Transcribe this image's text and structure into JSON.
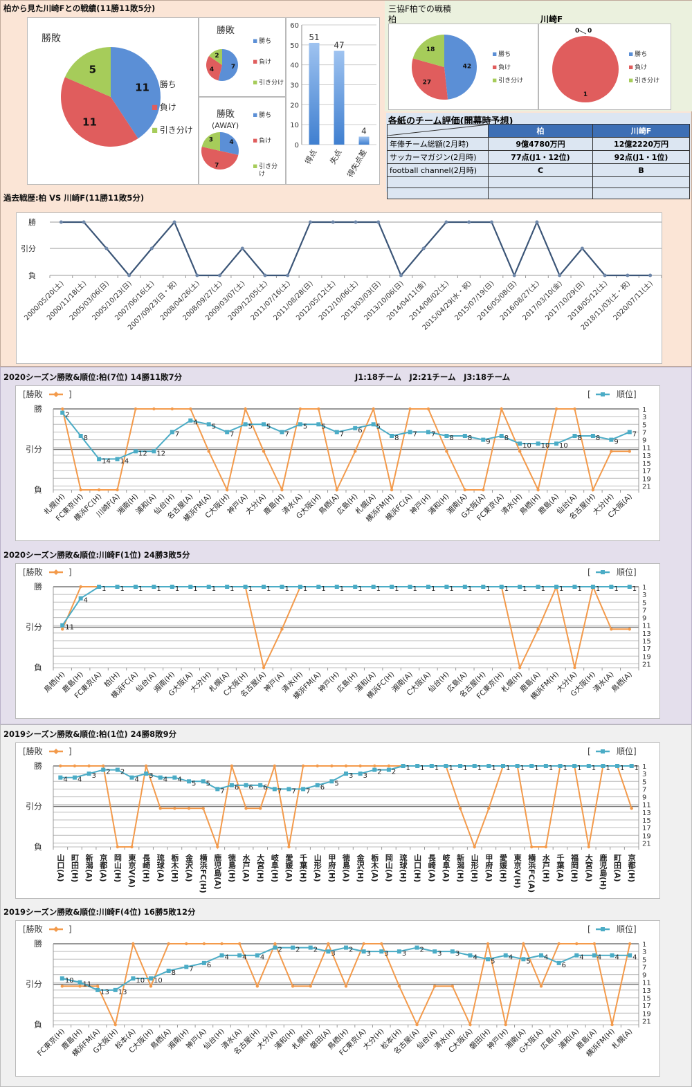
{
  "top_left": {
    "title": "柏から見た川崎Fとの戦績(11勝11敗5分)",
    "legend": [
      "勝ち",
      "負け",
      "引き分け"
    ],
    "colors": {
      "win": "#5b8fd6",
      "loss": "#e05d5d",
      "draw": "#a6cc5a"
    },
    "pie_all": {
      "title": "勝敗",
      "values": [
        11,
        11,
        5
      ]
    },
    "pie_home": {
      "title": "勝敗",
      "values": [
        7,
        4,
        2
      ]
    },
    "pie_away": {
      "title": "勝敗",
      "subtitle": "(AWAY)",
      "values": [
        4,
        7,
        3
      ],
      "legend_draw_line1": "引き分",
      "legend_draw_line2": "け"
    }
  },
  "top_right": {
    "title": "三協F柏での戦積",
    "pie_kashiwa": {
      "title": "柏",
      "values": [
        42,
        27,
        18
      ]
    },
    "pie_kawasaki": {
      "title": "川崎F",
      "values": [
        0,
        1,
        0
      ]
    }
  },
  "eval_table": {
    "title": "各紙のチーム評価(開幕時予想)",
    "headers": [
      "",
      "柏",
      "川崎F"
    ],
    "rows": [
      [
        "年俸チーム総額(2月時)",
        "9億4780万円",
        "12億2220万円"
      ],
      [
        "サッカーマガジン(2月時)",
        "77点(J1・12位)",
        "92点(J1・1位)"
      ],
      [
        "football channel(2月時)",
        "C",
        "B"
      ],
      [
        "",
        "",
        ""
      ],
      [
        "",
        "",
        ""
      ]
    ]
  },
  "chart_data": [
    {
      "id": "goals",
      "type": "bar",
      "categories": [
        "得点",
        "失点",
        "得失点差"
      ],
      "values": [
        51,
        47,
        4
      ],
      "ylim": [
        0,
        60
      ],
      "yticks": [
        0,
        10,
        20,
        30,
        40,
        50,
        60
      ],
      "color": "#4a86d6"
    },
    {
      "id": "history",
      "type": "line",
      "title": "過去戦歴:柏 VS 川崎F(11勝11敗5分)",
      "y_labels": [
        "勝",
        "引分",
        "負"
      ],
      "x": [
        "2000/05/20(土)",
        "2000/11/18(土)",
        "2005/03/06(日)",
        "2005/10/23(日)",
        "2007/06/16(土)",
        "2007/09/23(日・祝)",
        "2008/04/26(土)",
        "2008/09/27(土)",
        "2009/03/07(土)",
        "2009/12/05(土)",
        "2011/07/16(土)",
        "2011/08/28(日)",
        "2012/05/12(土)",
        "2012/10/06(土)",
        "2013/03/03(日)",
        "2013/10/06(日)",
        "2014/04/11(金)",
        "2014/08/02(土)",
        "2015/04/29(水・祝)",
        "2015/07/19(日)",
        "2016/05/08(日)",
        "2016/08/27(土)",
        "2017/03/10(金)",
        "2017/10/29(日)",
        "2018/05/12(土)",
        "2018/11/03(土・祝)",
        "2020/07/11(土)"
      ],
      "results": [
        "W",
        "W",
        "D",
        "L",
        "D",
        "W",
        "L",
        "L",
        "D",
        "L",
        "L",
        "W",
        "W",
        "W",
        "W",
        "L",
        "D",
        "W",
        "W",
        "W",
        "L",
        "W",
        "L",
        "D",
        "L",
        "L",
        "L"
      ],
      "color": "#3b5577"
    },
    {
      "id": "kashiwa2020",
      "type": "line",
      "title": "2020シーズン勝敗&順位:柏(7位) 14勝11敗7分",
      "note": "J1:18チーム　J2:21チーム　J3:18チーム",
      "legend_result": "[勝敗",
      "legend_rank": "順位]",
      "y_labels": [
        "勝",
        "引分",
        "負"
      ],
      "rank_ticks": [
        1,
        3,
        5,
        7,
        9,
        11,
        13,
        15,
        17,
        19,
        21
      ],
      "x": [
        "札幌(H)",
        "FC東京(H)",
        "横浜FC(H)",
        "川崎F(A)",
        "湘南(H)",
        "浦和(A)",
        "仙台(H)",
        "名古屋(A)",
        "横浜FM(A)",
        "C大阪(H)",
        "神戸(A)",
        "大分(A)",
        "鹿島(H)",
        "清水(A)",
        "G大阪(H)",
        "鳥栖(A)",
        "広島(H)",
        "札幌(A)",
        "横浜FM(H)",
        "横浜FC(A)",
        "神戸(H)",
        "浦和(H)",
        "湘南(A)",
        "G大阪(A)",
        "FC東京(A)",
        "清水(H)",
        "鳥栖(H)",
        "鹿島(A)",
        "仙台(A)",
        "名古屋(H)",
        "大分(H)",
        "C大阪(A)"
      ],
      "results": [
        "W",
        "L",
        "L",
        "L",
        "W",
        "W",
        "W",
        "W",
        "D",
        "L",
        "W",
        "D",
        "L",
        "W",
        "W",
        "L",
        "D",
        "W",
        "L",
        "W",
        "W",
        "D",
        "L",
        "L",
        "W",
        "D",
        "L",
        "W",
        "W",
        "L",
        "D",
        "D"
      ],
      "rank": [
        2,
        8,
        14,
        14,
        12,
        12,
        7,
        4,
        5,
        7,
        5,
        5,
        7,
        5,
        5,
        7,
        6,
        5,
        8,
        7,
        7,
        8,
        8,
        9,
        8,
        10,
        10,
        10,
        8,
        8,
        9,
        7
      ],
      "vertical_labels": false
    },
    {
      "id": "kawasaki2020",
      "type": "line",
      "title": "2020シーズン勝敗&順位:川崎F(1位) 24勝3敗5分",
      "legend_result": "[勝敗",
      "legend_rank": "順位]",
      "y_labels": [
        "勝",
        "引分",
        "負"
      ],
      "rank_ticks": [
        1,
        3,
        5,
        7,
        9,
        11,
        13,
        15,
        17,
        19,
        21
      ],
      "x": [
        "鳥栖(H)",
        "鹿島(H)",
        "FC東京(A)",
        "柏(H)",
        "横浜FC(A)",
        "仙台(A)",
        "湘南(H)",
        "G大阪(A)",
        "大分(H)",
        "札幌(A)",
        "C大阪(H)",
        "名古屋(A)",
        "神戸(A)",
        "清水(H)",
        "横浜FM(A)",
        "神戸(H)",
        "広島(H)",
        "浦和(A)",
        "横浜FC(H)",
        "湘南(A)",
        "C大阪(A)",
        "仙台(H)",
        "広島(A)",
        "名古屋(H)",
        "FC東京(H)",
        "札幌(H)",
        "鹿島(A)",
        "横浜FM(H)",
        "大分(A)",
        "G大阪(H)",
        "清水(A)",
        "鳥栖(A)"
      ],
      "results": [
        "D",
        "W",
        "W",
        "W",
        "W",
        "W",
        "W",
        "W",
        "W",
        "W",
        "W",
        "L",
        "D",
        "W",
        "W",
        "W",
        "W",
        "W",
        "W",
        "W",
        "W",
        "W",
        "W",
        "W",
        "W",
        "L",
        "D",
        "W",
        "L",
        "W",
        "D",
        "D"
      ],
      "rank": [
        11,
        4,
        1,
        1,
        1,
        1,
        1,
        1,
        1,
        1,
        1,
        1,
        1,
        1,
        1,
        1,
        1,
        1,
        1,
        1,
        1,
        1,
        1,
        1,
        1,
        1,
        1,
        1,
        1,
        1,
        1,
        1
      ],
      "vertical_labels": false
    },
    {
      "id": "kashiwa2019",
      "type": "line",
      "title": "2019シーズン勝敗&順位:柏(1位) 24勝8敗9分",
      "legend_result": "[勝敗",
      "legend_rank": "順位]",
      "y_labels": [
        "勝",
        "引分",
        "負"
      ],
      "rank_ticks": [
        1,
        3,
        5,
        7,
        9,
        11,
        13,
        15,
        17,
        19,
        21
      ],
      "x": [
        "山口(A)",
        "町田(H)",
        "新潟(A)",
        "京都(A)",
        "岡山(H)",
        "東京V(A)",
        "長崎(H)",
        "琉球(A)",
        "栃木(H)",
        "金沢(A)",
        "横浜FC(H)",
        "鹿児島(A)",
        "徳島(H)",
        "水戸(A)",
        "大宮(H)",
        "岐阜(H)",
        "愛媛(A)",
        "千葉(H)",
        "山形(A)",
        "甲府(H)",
        "徳島(A)",
        "金沢(H)",
        "栃木(A)",
        "岡山(A)",
        "琉球(H)",
        "山口(H)",
        "長崎(A)",
        "岐阜(A)",
        "新潟(H)",
        "山形(H)",
        "甲府(A)",
        "愛媛(H)",
        "東京V(H)",
        "横浜FC(A)",
        "水戸(H)",
        "千葉(A)",
        "福岡(H)",
        "大宮(A)",
        "鹿児島(H)",
        "町田(A)",
        "京都(H)"
      ],
      "results": [
        "W",
        "W",
        "W",
        "W",
        "L",
        "L",
        "W",
        "D",
        "D",
        "D",
        "D",
        "L",
        "W",
        "D",
        "D",
        "W",
        "L",
        "W",
        "W",
        "W",
        "W",
        "W",
        "W",
        "W",
        "W",
        "W",
        "W",
        "W",
        "D",
        "L",
        "D",
        "W",
        "W",
        "L",
        "L",
        "W",
        "W",
        "L",
        "W",
        "W",
        "D"
      ],
      "rank": [
        4,
        4,
        3,
        2,
        2,
        4,
        3,
        4,
        4,
        5,
        5,
        7,
        6,
        6,
        6,
        7,
        7,
        7,
        6,
        5,
        3,
        3,
        2,
        2,
        1,
        1,
        1,
        1,
        1,
        1,
        1,
        1,
        1,
        1,
        1,
        1,
        1,
        1,
        1,
        1,
        1
      ],
      "vertical_labels": true
    },
    {
      "id": "kawasaki2019",
      "type": "line",
      "title": "2019シーズン勝敗&順位:川崎F(4位) 16勝5敗12分",
      "legend_result": "[勝敗",
      "legend_rank": "順位]",
      "y_labels": [
        "勝",
        "引分",
        "負"
      ],
      "rank_ticks": [
        1,
        3,
        5,
        7,
        9,
        11,
        13,
        15,
        17,
        19,
        21
      ],
      "x": [
        "FC東京(H)",
        "鹿島(H)",
        "横浜FM(A)",
        "G大阪(H)",
        "松本(A)",
        "C大阪(H)",
        "鳥栖(A)",
        "湘南(H)",
        "神戸(A)",
        "仙台(H)",
        "清水(A)",
        "名古屋(H)",
        "大分(A)",
        "浦和(H)",
        "札幌(H)",
        "磐田(A)",
        "鳥栖(H)",
        "FC東京(A)",
        "大分(H)",
        "松本(H)",
        "名古屋(A)",
        "仙台(A)",
        "清水(H)",
        "C大阪(A)",
        "磐田(H)",
        "神戸(H)",
        "湘南(A)",
        "G大阪(A)",
        "広島(H)",
        "浦和(A)",
        "鹿島(A)",
        "横浜FM(H)",
        "札幌(A)"
      ],
      "results": [
        "D",
        "D",
        "D",
        "L",
        "W",
        "D",
        "W",
        "W",
        "W",
        "W",
        "W",
        "D",
        "W",
        "D",
        "D",
        "W",
        "D",
        "W",
        "W",
        "D",
        "L",
        "D",
        "D",
        "L",
        "W",
        "L",
        "W",
        "D",
        "W",
        "W",
        "W",
        "L",
        "W"
      ],
      "rank": [
        10,
        11,
        13,
        13,
        10,
        10,
        8,
        7,
        6,
        4,
        4,
        4,
        2,
        2,
        2,
        3,
        2,
        3,
        3,
        3,
        2,
        3,
        3,
        4,
        5,
        4,
        5,
        4,
        6,
        4,
        4,
        4,
        4
      ],
      "vertical_labels": false
    }
  ]
}
